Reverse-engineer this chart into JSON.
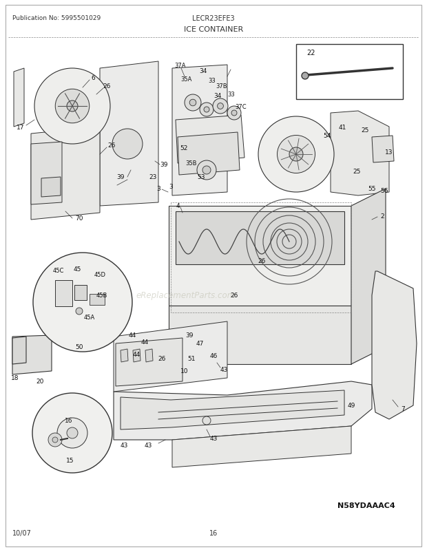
{
  "page_bg": "#ffffff",
  "pub_no": "Publication No: 5995501029",
  "model": "LECR23EFE3",
  "section": "ICE CONTAINER",
  "diagram_code": "N58YDAAAC4",
  "date": "10/07",
  "page_num": "16",
  "text_color": "#333333",
  "line_color": "#333333",
  "figsize": [
    6.2,
    8.03
  ],
  "dpi": 100
}
